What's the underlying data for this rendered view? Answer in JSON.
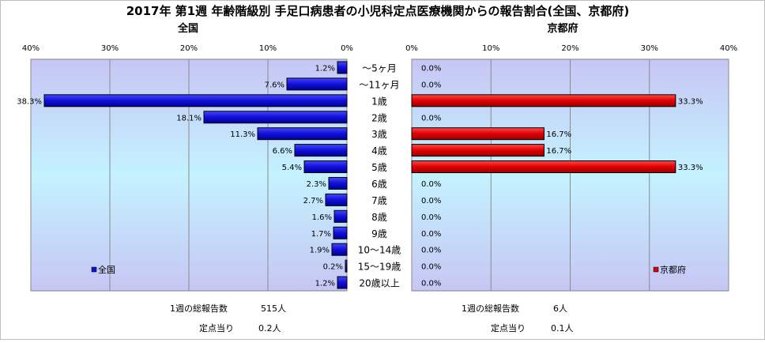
{
  "chart_data": {
    "type": "bar",
    "title": "2017年 第1週 年齢階級別 手足口病患者の小児科定点医療機関からの報告割合(全国、京都府)",
    "categories": [
      "～5ヶ月",
      "～11ヶ月",
      "1歳",
      "2歳",
      "3歳",
      "4歳",
      "5歳",
      "6歳",
      "7歳",
      "8歳",
      "9歳",
      "10～14歳",
      "15～19歳",
      "20歳以上"
    ],
    "xlim": [
      0,
      40
    ],
    "ticks": [
      "0%",
      "10%",
      "20%",
      "30%",
      "40%"
    ],
    "tick_values": [
      0,
      10,
      20,
      30,
      40
    ],
    "panels": [
      {
        "name": "全国",
        "legend": "全国",
        "color": "#1010d8",
        "values": [
          1.2,
          7.6,
          38.3,
          18.1,
          11.3,
          6.6,
          5.4,
          2.3,
          2.7,
          1.6,
          1.7,
          1.9,
          0.2,
          1.2
        ],
        "labels": [
          "1.2%",
          "7.6%",
          "38.3%",
          "18.1%",
          "11.3%",
          "6.6%",
          "5.4%",
          "2.3%",
          "2.7%",
          "1.6%",
          "1.7%",
          "1.9%",
          "0.2%",
          "1.2%"
        ],
        "total_label": "1週の総報告数",
        "total_value": "515人",
        "per_label": "定点当り",
        "per_value": "0.2人"
      },
      {
        "name": "京都府",
        "legend": "京都府",
        "color": "#e00000",
        "values": [
          0,
          0,
          33.3,
          0,
          16.7,
          16.7,
          33.3,
          0,
          0,
          0,
          0,
          0,
          0,
          0
        ],
        "labels": [
          "0.0%",
          "0.0%",
          "33.3%",
          "0.0%",
          "16.7%",
          "16.7%",
          "33.3%",
          "0.0%",
          "0.0%",
          "0.0%",
          "0.0%",
          "0.0%",
          "0.0%",
          "0.0%"
        ],
        "total_label": "1週の総報告数",
        "total_value": "6人",
        "per_label": "定点当り",
        "per_value": "0.1人"
      }
    ]
  }
}
